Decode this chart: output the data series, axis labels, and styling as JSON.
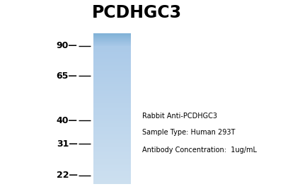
{
  "title": "PCDHGC3",
  "title_fontsize": 17,
  "title_fontweight": "bold",
  "background_color": "#ffffff",
  "lane_color_top": "#a8c8e8",
  "lane_color_bottom": "#cde0f0",
  "band_color_dark": "#7aaed4",
  "band_color_light": "#a8c8e8",
  "mw_markers": [
    90,
    65,
    40,
    31,
    22
  ],
  "mw_labels": [
    "90",
    "65",
    "40",
    "31",
    "22"
  ],
  "annotation_lines": [
    "Rabbit Anti-PCDHGC3",
    "Sample Type: Human 293T",
    "Antibody Concentration:  1ug/mL"
  ],
  "annotation_fontsize": 7.0,
  "tick_label_fontsize": 9,
  "tick_label_fontweight": "bold"
}
